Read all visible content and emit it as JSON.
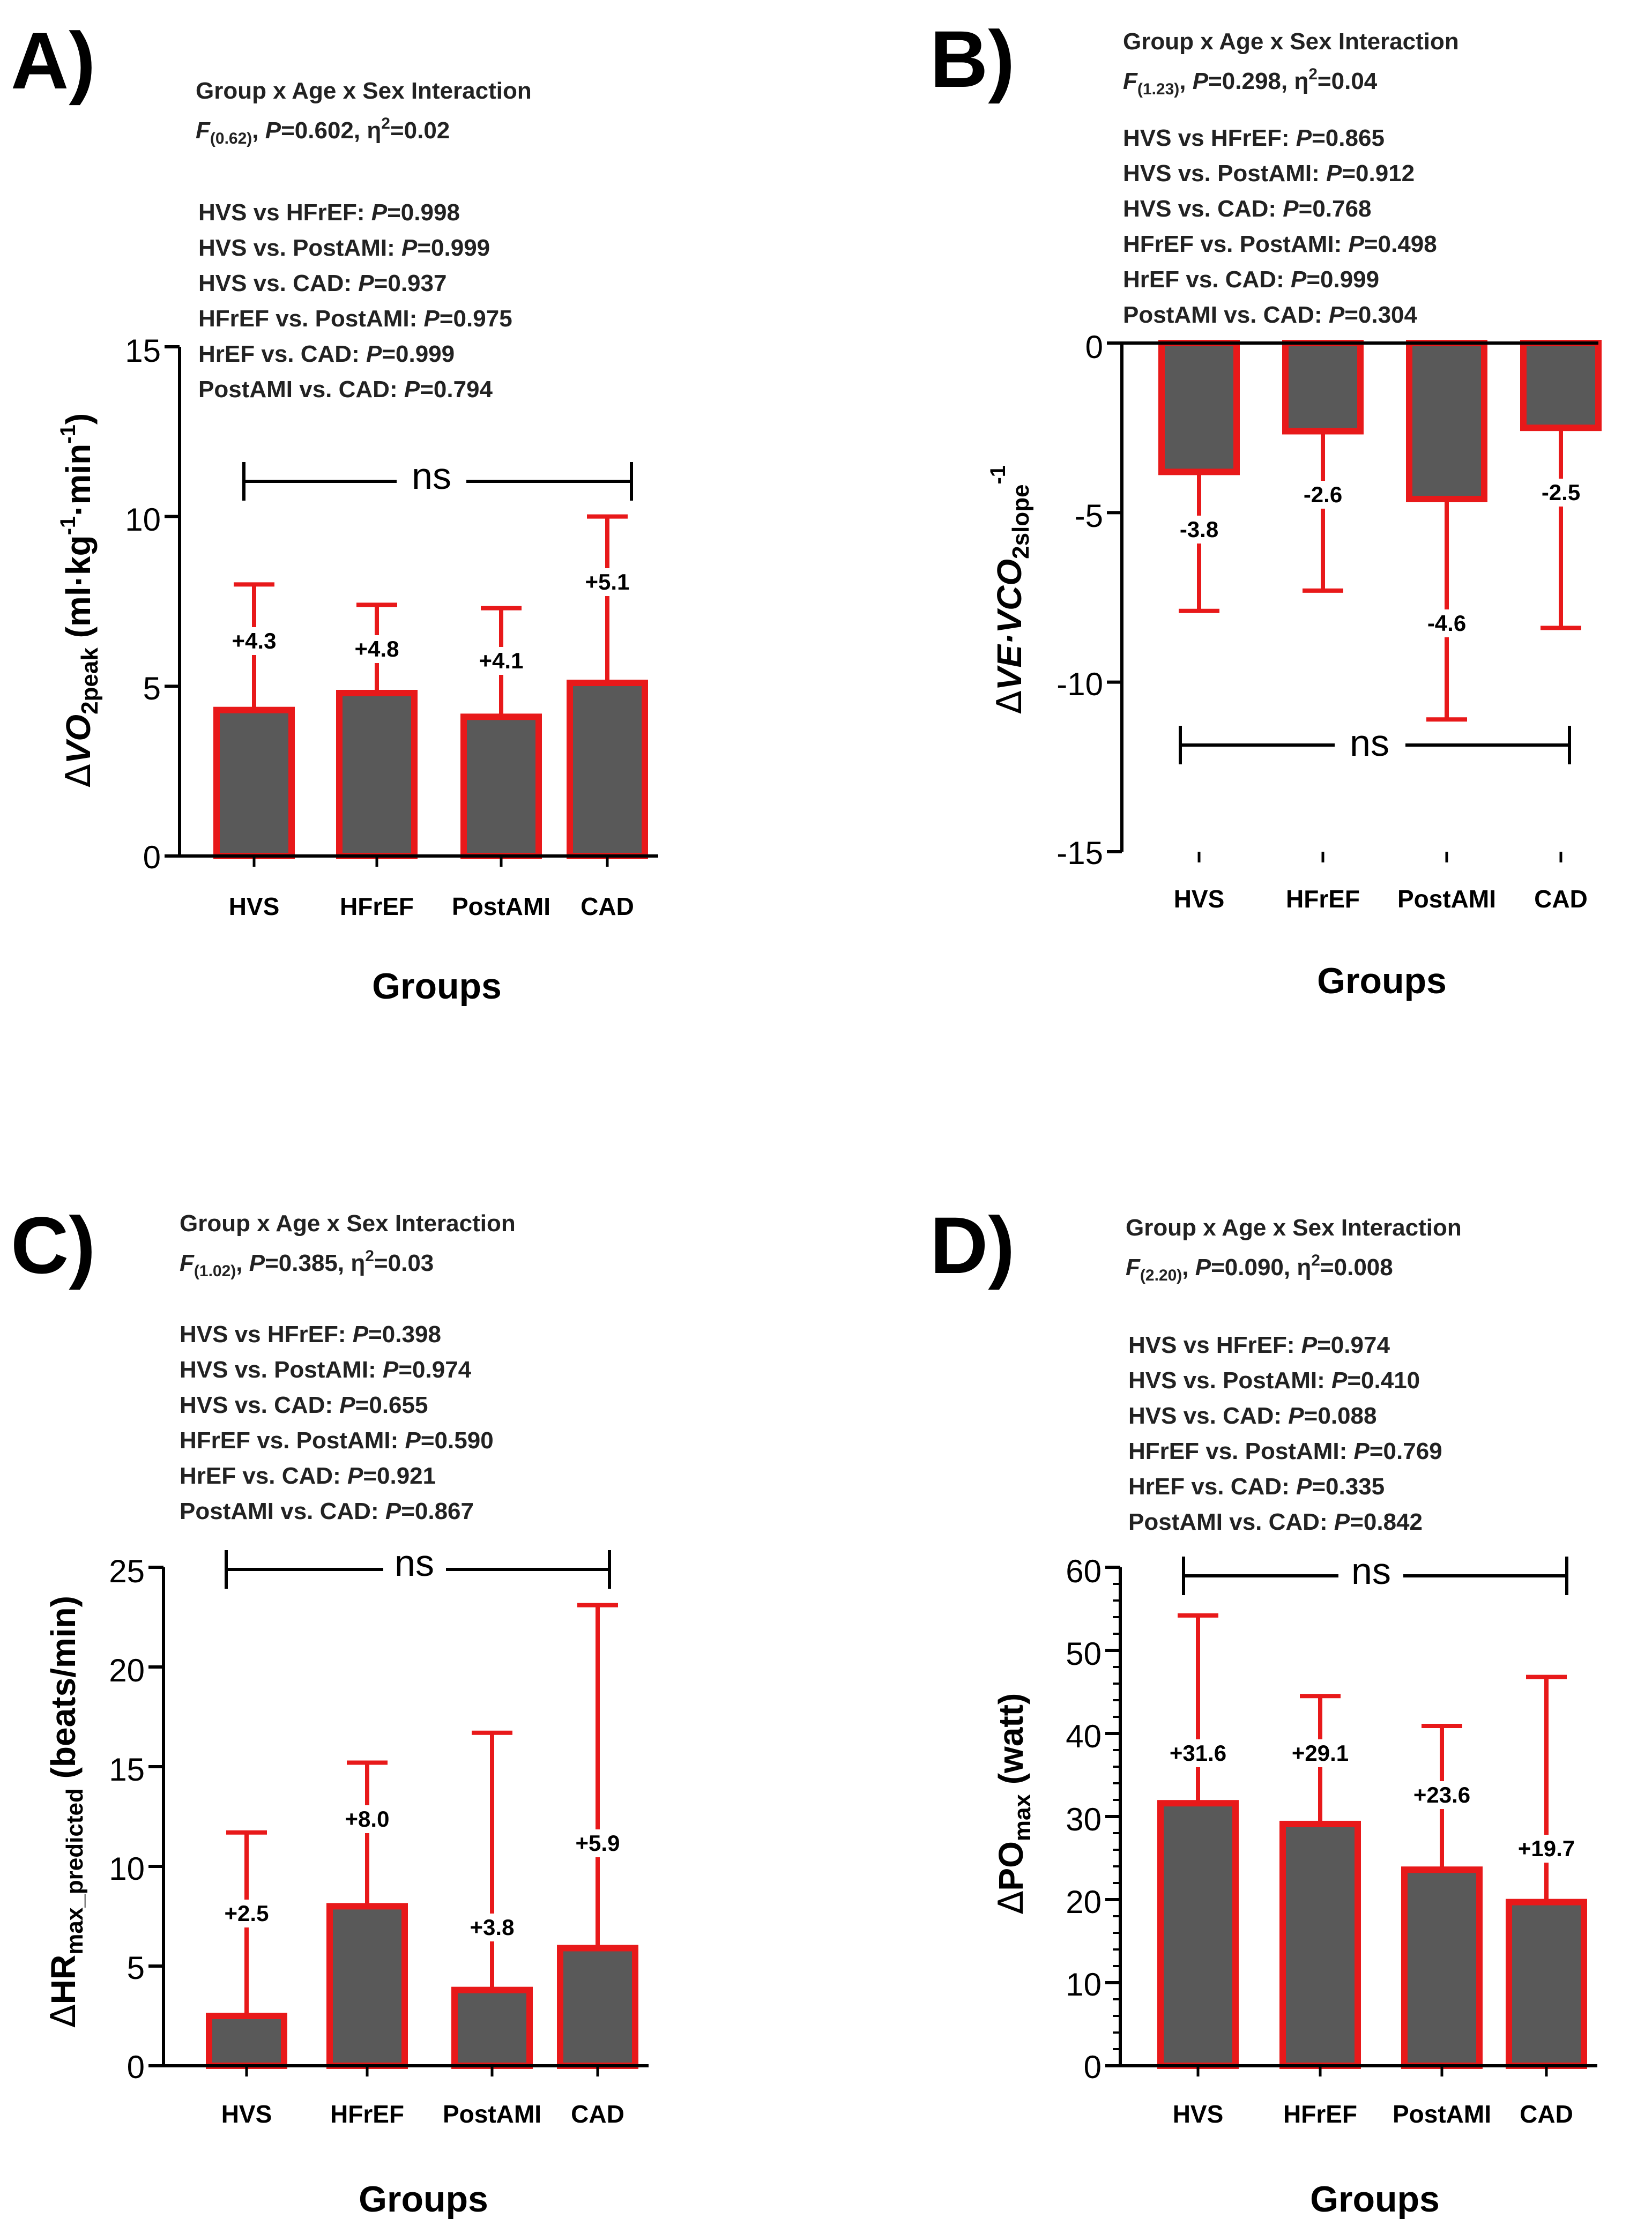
{
  "colors": {
    "bar_fill": "#595959",
    "bar_stroke": "#e8191a",
    "error": "#e8191a",
    "axis": "#000000"
  },
  "chart_data": [
    {
      "id": "A",
      "type": "bar",
      "panel_letter": "A)",
      "categories": [
        "HVS",
        "HFrEF",
        "PostAMI",
        "CAD"
      ],
      "values": [
        4.3,
        4.8,
        4.1,
        5.1
      ],
      "errors": [
        3.7,
        2.6,
        3.2,
        4.9
      ],
      "value_labels": [
        "+4.3",
        "+4.8",
        "+4.1",
        "+5.1"
      ],
      "xlabel": "Groups",
      "ylabel": {
        "pre": "Δ",
        "main": "VO",
        "sub": "2peak",
        "post": " (ml·kg",
        "sup1": "-1",
        "mid": "·min",
        "sup2": "-1",
        "end": ")"
      },
      "ylim": [
        0,
        15
      ],
      "yticks": [
        "0",
        "5",
        "10",
        "15"
      ],
      "significance": "ns",
      "stats": {
        "title": "Group x Age x Sex Interaction",
        "f_letter": "F",
        "f_df": "(0.62)",
        "p_text": "P",
        "p_val": "=0.602, ",
        "eta": "η",
        "eta_sup": "2",
        "eta_val": "=0.02",
        "comparisons": [
          {
            "label": "HVS vs HFrEF: ",
            "p": "P",
            "val": "=0.998"
          },
          {
            "label": "HVS vs. PostAMI: ",
            "p": "P",
            "val": "=0.999"
          },
          {
            "label": "HVS vs. CAD: ",
            "p": "P",
            "val": "=0.937"
          },
          {
            "label": "HFrEF vs. PostAMI: ",
            "p": "P",
            "val": "=0.975"
          },
          {
            "label": "HrEF vs. CAD: ",
            "p": "P",
            "val": "=0.999"
          },
          {
            "label": "PostAMI vs. CAD: ",
            "p": "P",
            "val": "=0.794"
          }
        ]
      }
    },
    {
      "id": "B",
      "type": "bar",
      "panel_letter": "B)",
      "categories": [
        "HVS",
        "HFrEF",
        "PostAMI",
        "CAD"
      ],
      "values": [
        -3.8,
        -2.6,
        -4.6,
        -2.5
      ],
      "errors": [
        4.1,
        4.7,
        6.5,
        5.9
      ],
      "value_labels": [
        "-3.8",
        "-2.6",
        "-4.6",
        "-2.5"
      ],
      "xlabel": "Groups",
      "ylabel": {
        "pre": "Δ",
        "main": "VE·VCO",
        "sub": "2slope",
        "sup": "-1"
      },
      "ylim": [
        -15,
        0
      ],
      "yticks": [
        "-15",
        "-10",
        "-5",
        "0"
      ],
      "significance": "ns",
      "stats": {
        "title": "Group x Age x Sex Interaction",
        "f_letter": "F",
        "f_df": "(1.23)",
        "p_text": "P",
        "p_val": "=0.298, ",
        "eta": "η",
        "eta_sup": "2",
        "eta_val": "=0.04",
        "comparisons": [
          {
            "label": "HVS vs HFrEF: ",
            "p": "P",
            "val": "=0.865"
          },
          {
            "label": "HVS vs. PostAMI: ",
            "p": "P",
            "val": "=0.912"
          },
          {
            "label": "HVS vs. CAD: ",
            "p": "P",
            "val": "=0.768"
          },
          {
            "label": "HFrEF vs. PostAMI: ",
            "p": "P",
            "val": "=0.498"
          },
          {
            "label": "HrEF vs. CAD: ",
            "p": "P",
            "val": "=0.999"
          },
          {
            "label": "PostAMI vs. CAD: ",
            "p": "P",
            "val": "=0.304"
          }
        ]
      }
    },
    {
      "id": "C",
      "type": "bar",
      "panel_letter": "C)",
      "categories": [
        "HVS",
        "HFrEF",
        "PostAMI",
        "CAD"
      ],
      "values": [
        2.5,
        8.0,
        3.8,
        5.9
      ],
      "errors": [
        9.2,
        7.2,
        12.9,
        17.2
      ],
      "value_labels": [
        "+2.5",
        "+8.0",
        "+3.8",
        "+5.9"
      ],
      "xlabel": "Groups",
      "ylabel": {
        "pre": "Δ",
        "main": "HR",
        "sub": "max_predicted",
        "post": " (beats/min)"
      },
      "ylim": [
        0,
        25
      ],
      "yticks": [
        "0",
        "5",
        "10",
        "15",
        "20",
        "25"
      ],
      "significance": "ns",
      "stats": {
        "title": "Group x Age x Sex Interaction",
        "f_letter": "F",
        "f_df": "(1.02)",
        "p_text": "P",
        "p_val": "=0.385, ",
        "eta": "η",
        "eta_sup": "2",
        "eta_val": "=0.03",
        "comparisons": [
          {
            "label": "HVS vs HFrEF: ",
            "p": "P",
            "val": "=0.398"
          },
          {
            "label": "HVS vs. PostAMI: ",
            "p": "P",
            "val": "=0.974"
          },
          {
            "label": "HVS vs. CAD: ",
            "p": "P",
            "val": "=0.655"
          },
          {
            "label": "HFrEF vs. PostAMI: ",
            "p": "P",
            "val": "=0.590"
          },
          {
            "label": "HrEF vs. CAD: ",
            "p": "P",
            "val": "=0.921"
          },
          {
            "label": "PostAMI vs. CAD: ",
            "p": "P",
            "val": "=0.867"
          }
        ]
      }
    },
    {
      "id": "D",
      "type": "bar",
      "panel_letter": "D)",
      "categories": [
        "HVS",
        "HFrEF",
        "PostAMI",
        "CAD"
      ],
      "values": [
        31.6,
        29.1,
        23.6,
        19.7
      ],
      "errors": [
        22.6,
        15.4,
        17.3,
        27.1
      ],
      "value_labels": [
        "+31.6",
        "+29.1",
        "+23.6",
        "+19.7"
      ],
      "xlabel": "Groups",
      "ylabel": {
        "pre": "Δ",
        "main": "PO",
        "sub": "max",
        "post": " (watt)"
      },
      "ylim": [
        0,
        60
      ],
      "yticks": [
        "0",
        "10",
        "20",
        "30",
        "40",
        "50",
        "60"
      ],
      "significance": "ns",
      "stats": {
        "title": "Group x Age x Sex Interaction",
        "f_letter": "F",
        "f_df": "(2.20)",
        "p_text": "P",
        "p_val": "=0.090, ",
        "eta": "η",
        "eta_sup": "2",
        "eta_val": "=0.008",
        "comparisons": [
          {
            "label": "HVS vs HFrEF: ",
            "p": "P",
            "val": "=0.974"
          },
          {
            "label": "HVS vs. PostAMI: ",
            "p": "P",
            "val": "=0.410"
          },
          {
            "label": "HVS vs. CAD: ",
            "p": "P",
            "val": "=0.088"
          },
          {
            "label": "HFrEF vs. PostAMI: ",
            "p": "P",
            "val": "=0.769"
          },
          {
            "label": "HrEF vs. CAD: ",
            "p": "P",
            "val": "=0.335"
          },
          {
            "label": "PostAMI vs. CAD: ",
            "p": "P",
            "val": "=0.842"
          }
        ]
      }
    }
  ]
}
